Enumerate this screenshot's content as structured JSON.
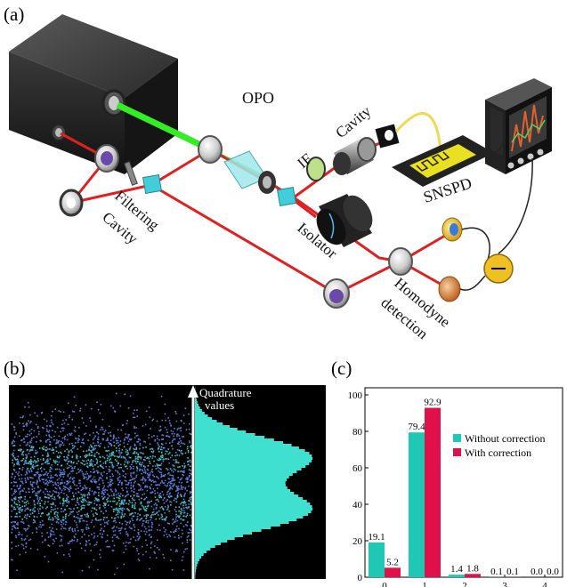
{
  "panels": {
    "a": "(a)",
    "b": "(b)",
    "c": "(c)"
  },
  "setup": {
    "labels": {
      "opo": "OPO",
      "if": "IF",
      "cavity": "Cavity",
      "snspd": "SNSPD",
      "filtering_cavity_1": "Filtering",
      "filtering_cavity_2": "Cavity",
      "isolator": "Isolator",
      "homodyne_1": "Homodyne",
      "homodyne_2": "detection"
    },
    "colors": {
      "laser_green": "#33ee22",
      "laser_red": "#e02020",
      "beamsplitter": "#44ccd8"
    }
  },
  "quadrature": {
    "axis_label_1": "Quadrature",
    "axis_label_2": "values",
    "colors": {
      "background": "#000000",
      "scatter": "#5a7cd6",
      "scatter_dense": "#3fc8c0",
      "histogram": "#40e0d0"
    }
  },
  "chart_data": {
    "type": "bar",
    "categories": [
      "0",
      "1",
      "2",
      "3",
      "4"
    ],
    "series": [
      {
        "name": "Without correction",
        "color": "#1ec8b4",
        "values": [
          19.1,
          79.4,
          1.4,
          0.1,
          0.0
        ]
      },
      {
        "name": "With correction",
        "color": "#e0104a",
        "values": [
          5.2,
          92.9,
          1.8,
          0.1,
          0.0
        ]
      }
    ],
    "value_labels": [
      [
        "19.1",
        "79.4",
        "1.4",
        "0.1",
        "0.0"
      ],
      [
        "5.2",
        "92.9",
        "1.8",
        "0.1",
        "0.0"
      ]
    ],
    "yticks": [
      "0",
      "20",
      "40",
      "60",
      "80",
      "100"
    ],
    "ylim": [
      0,
      100
    ],
    "legend_position": "center-right",
    "grid": false
  }
}
